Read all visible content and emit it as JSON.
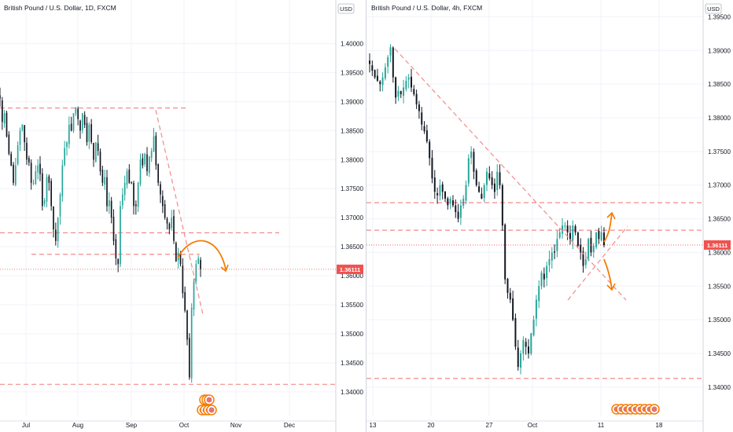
{
  "chart_data": [
    {
      "type": "candlestick",
      "title": "British Pound / U.S. Dollar, 1D, FXCM",
      "currency": "USD",
      "last_price": "1.36111",
      "x_ticks": [
        "Jul",
        "Aug",
        "Sep",
        "Oct",
        "Nov",
        "Dec"
      ],
      "y_ticks": [
        "1.40000",
        "1.39500",
        "1.39000",
        "1.38500",
        "1.38000",
        "1.37500",
        "1.37000",
        "1.36500",
        "1.36000",
        "1.35500",
        "1.35000",
        "1.34500",
        "1.34000"
      ],
      "ylim": [
        1.3385,
        1.4075
      ],
      "horizontal_levels": [
        1.3889,
        1.3674,
        1.3637,
        1.3413
      ],
      "approx_closes": [
        1.3905,
        1.3865,
        1.388,
        1.384,
        1.381,
        1.379,
        1.376,
        1.379,
        1.3825,
        1.385,
        1.386,
        1.383,
        1.38,
        1.3795,
        1.376,
        1.376,
        1.378,
        1.379,
        1.3775,
        1.372,
        1.373,
        1.377,
        1.376,
        1.372,
        1.368,
        1.366,
        1.37,
        1.374,
        1.379,
        1.382,
        1.383,
        1.386,
        1.385,
        1.388,
        1.389,
        1.387,
        1.385,
        1.388,
        1.386,
        1.383,
        1.386,
        1.383,
        1.38,
        1.383,
        1.3815,
        1.378,
        1.376,
        1.377,
        1.372,
        1.373,
        1.37,
        1.366,
        1.363,
        1.362,
        1.372,
        1.374,
        1.376,
        1.378,
        1.376,
        1.376,
        1.372,
        1.372,
        1.376,
        1.38,
        1.379,
        1.381,
        1.378,
        1.3805,
        1.3815,
        1.384,
        1.379,
        1.376,
        1.374,
        1.372,
        1.37,
        1.369,
        1.368,
        1.37,
        1.366,
        1.3625,
        1.364,
        1.362,
        1.357,
        1.354,
        1.349,
        1.3425,
        1.3545,
        1.359,
        1.362,
        1.363,
        1.3611
      ]
    },
    {
      "type": "candlestick",
      "title": "British Pound / U.S. Dollar, 4h, FXCM",
      "currency": "USD",
      "last_price": "1.36111",
      "x_ticks": [
        "13",
        "20",
        "27",
        "Oct",
        "11",
        "18"
      ],
      "y_ticks": [
        "1.39500",
        "1.39000",
        "1.38500",
        "1.38000",
        "1.37500",
        "1.37000",
        "1.36500",
        "1.36000",
        "1.35500",
        "1.35000",
        "1.34500",
        "1.34000"
      ],
      "ylim": [
        1.338,
        1.3975
      ],
      "horizontal_levels": [
        1.3674,
        1.3633,
        1.3413
      ],
      "approx_closes": [
        1.388,
        1.387,
        1.386,
        1.3855,
        1.385,
        1.386,
        1.3875,
        1.389,
        1.3905,
        1.386,
        1.383,
        1.384,
        1.3835,
        1.3845,
        1.3855,
        1.386,
        1.3845,
        1.3835,
        1.382,
        1.381,
        1.379,
        1.378,
        1.3765,
        1.374,
        1.371,
        1.369,
        1.3685,
        1.37,
        1.369,
        1.368,
        1.367,
        1.368,
        1.367,
        1.366,
        1.365,
        1.367,
        1.368,
        1.37,
        1.374,
        1.375,
        1.372,
        1.37,
        1.369,
        1.368,
        1.37,
        1.372,
        1.371,
        1.37,
        1.369,
        1.372,
        1.37,
        1.364,
        1.356,
        1.354,
        1.353,
        1.35,
        1.346,
        1.343,
        1.345,
        1.347,
        1.346,
        1.345,
        1.348,
        1.35,
        1.353,
        1.355,
        1.357,
        1.356,
        1.358,
        1.359,
        1.36,
        1.36,
        1.362,
        1.363,
        1.364,
        1.364,
        1.363,
        1.362,
        1.364,
        1.363,
        1.361,
        1.36,
        1.358,
        1.359,
        1.362,
        1.36,
        1.361,
        1.363,
        1.362,
        1.363,
        1.3611
      ]
    }
  ]
}
